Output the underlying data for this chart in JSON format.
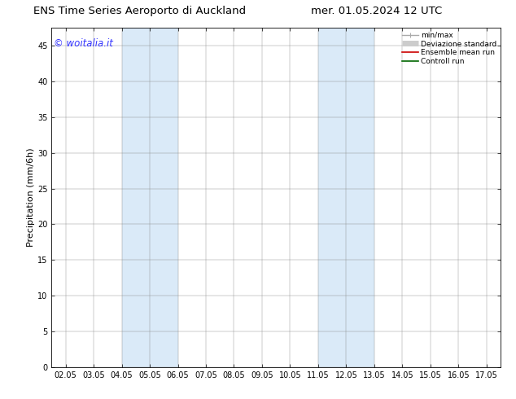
{
  "title_left": "ENS Time Series Aeroporto di Auckland",
  "title_right": "mer. 01.05.2024 12 UTC",
  "ylabel": "Precipitation (mm/6h)",
  "ylim": [
    0,
    47.5
  ],
  "yticks": [
    0,
    5,
    10,
    15,
    20,
    25,
    30,
    35,
    40,
    45
  ],
  "xtick_labels": [
    "02.05",
    "03.05",
    "04.05",
    "05.05",
    "06.05",
    "07.05",
    "08.05",
    "09.05",
    "10.05",
    "11.05",
    "12.05",
    "13.05",
    "14.05",
    "15.05",
    "16.05",
    "17.05"
  ],
  "xtick_positions": [
    0,
    1,
    2,
    3,
    4,
    5,
    6,
    7,
    8,
    9,
    10,
    11,
    12,
    13,
    14,
    15
  ],
  "xlim": [
    -0.5,
    15.5
  ],
  "shaded_bands": [
    {
      "xmin": 2,
      "xmax": 4,
      "color": "#daeaf8"
    },
    {
      "xmin": 9,
      "xmax": 11,
      "color": "#daeaf8"
    }
  ],
  "watermark": "© woitalia.it",
  "watermark_color": "#3333ff",
  "legend_labels": [
    "min/max",
    "Deviazione standard",
    "Ensemble mean run",
    "Controll run"
  ],
  "legend_colors": [
    "#aaaaaa",
    "#cccccc",
    "#cc0000",
    "#006600"
  ],
  "legend_lws": [
    1.0,
    5,
    1.2,
    1.2
  ],
  "bg_color": "#ffffff",
  "title_fontsize": 9.5,
  "tick_fontsize": 7,
  "ylabel_fontsize": 8,
  "watermark_fontsize": 8.5
}
